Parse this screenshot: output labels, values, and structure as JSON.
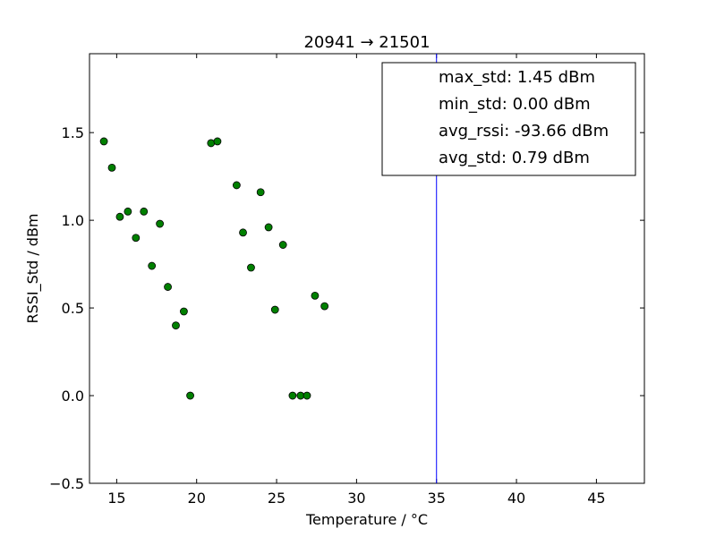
{
  "chart_data": {
    "type": "scatter",
    "title": "20941 → 21501",
    "xlabel": "Temperature / °C",
    "ylabel": "RSSI_Std / dBm",
    "xlim": [
      13.3,
      48
    ],
    "ylim": [
      -0.5,
      1.95
    ],
    "xticks": [
      15,
      20,
      25,
      30,
      35,
      40,
      45
    ],
    "xtick_labels": [
      "15",
      "20",
      "25",
      "30",
      "35",
      "40",
      "45"
    ],
    "yticks": [
      -0.5,
      0.0,
      0.5,
      1.0,
      1.5
    ],
    "ytick_labels": [
      "−0.5",
      "0.0",
      "0.5",
      "1.0",
      "1.5"
    ],
    "grid": false,
    "legend_position": "top-right",
    "legend": [
      "max_std: 1.45 dBm",
      "min_std: 0.00 dBm",
      "avg_rssi: -93.66 dBm",
      "avg_std: 0.79 dBm"
    ],
    "vertical_line": {
      "x": 35,
      "color": "#0000ff"
    },
    "marker_color": "#008000",
    "series": [
      {
        "points": [
          [
            14.2,
            1.45
          ],
          [
            14.7,
            1.3
          ],
          [
            15.2,
            1.02
          ],
          [
            15.7,
            1.05
          ],
          [
            16.2,
            0.9
          ],
          [
            16.7,
            1.05
          ],
          [
            17.2,
            0.74
          ],
          [
            17.7,
            0.98
          ],
          [
            18.2,
            0.62
          ],
          [
            18.7,
            0.4
          ],
          [
            19.2,
            0.48
          ],
          [
            19.6,
            0.0
          ],
          [
            20.9,
            1.44
          ],
          [
            21.3,
            1.45
          ],
          [
            22.5,
            1.2
          ],
          [
            22.9,
            0.93
          ],
          [
            23.4,
            0.73
          ],
          [
            24.0,
            1.16
          ],
          [
            24.5,
            0.96
          ],
          [
            24.9,
            0.49
          ],
          [
            25.4,
            0.86
          ],
          [
            26.0,
            0.0
          ],
          [
            26.5,
            0.0
          ],
          [
            26.9,
            0.0
          ],
          [
            27.4,
            0.57
          ],
          [
            28.0,
            0.51
          ]
        ]
      }
    ]
  }
}
